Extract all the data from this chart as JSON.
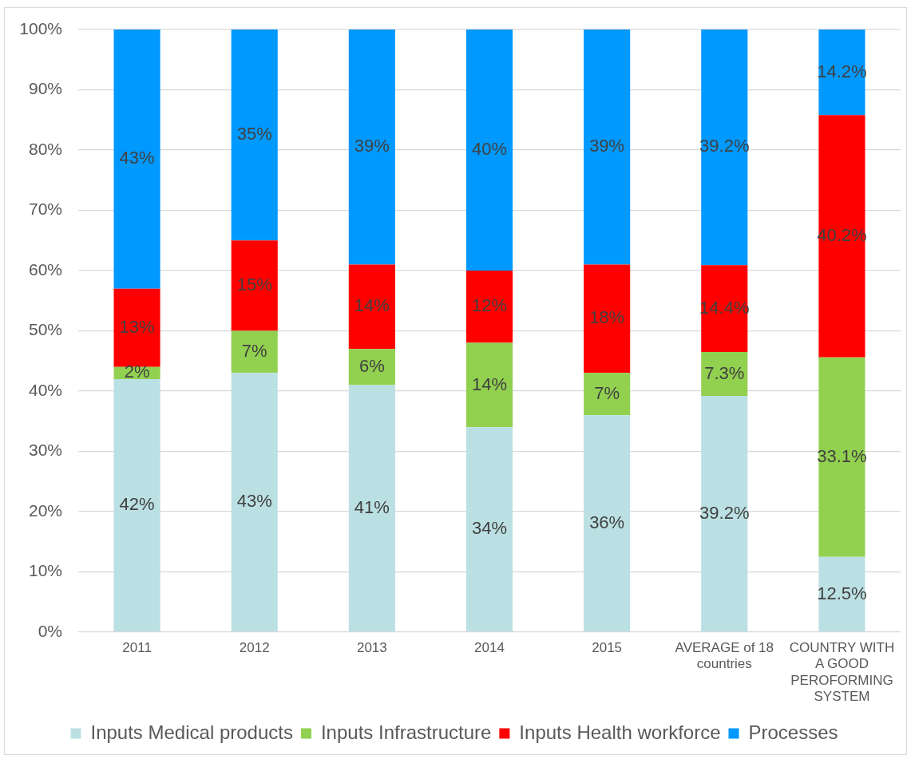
{
  "chart_data": {
    "type": "bar",
    "stacked": true,
    "categories": [
      "2011",
      "2012",
      "2013",
      "2014",
      "2015",
      "AVERAGE of 18 countries",
      "COUNTRY WITH A GOOD PEROFORMING SYSTEM"
    ],
    "series": [
      {
        "name": "Inputs Medical products",
        "color": "#bbe0e3",
        "values": [
          42,
          43,
          41,
          34,
          36,
          39.2,
          12.5
        ],
        "value_labels": [
          "42%",
          "43%",
          "41%",
          "34%",
          "36%",
          "39.2%",
          "12.5%"
        ]
      },
      {
        "name": "Inputs Infrastructure",
        "color": "#92d050",
        "values": [
          2,
          7,
          6,
          14,
          7,
          7.3,
          33.1
        ],
        "value_labels": [
          "2%",
          "7%",
          "6%",
          "14%",
          "7%",
          "7.3%",
          "33.1%"
        ]
      },
      {
        "name": "Inputs Health workforce",
        "color": "#ff0000",
        "values": [
          13,
          15,
          14,
          12,
          18,
          14.4,
          40.2
        ],
        "value_labels": [
          "13%",
          "15%",
          "14%",
          "12%",
          "18%",
          "14.4%",
          "40.2%"
        ]
      },
      {
        "name": "Processes",
        "color": "#0099ff",
        "values": [
          43,
          35,
          39,
          40,
          39,
          39.2,
          14.2
        ],
        "value_labels": [
          "43%",
          "35%",
          "39%",
          "40%",
          "39%",
          "39.2%",
          "14.2%"
        ]
      }
    ],
    "ylim": [
      0,
      100
    ],
    "yticks": [
      {
        "value": 0,
        "label": "0%"
      },
      {
        "value": 10,
        "label": "10%"
      },
      {
        "value": 20,
        "label": "20%"
      },
      {
        "value": 30,
        "label": "30%"
      },
      {
        "value": 40,
        "label": "40%"
      },
      {
        "value": 50,
        "label": "50%"
      },
      {
        "value": 60,
        "label": "60%"
      },
      {
        "value": 70,
        "label": "70%"
      },
      {
        "value": 80,
        "label": "80%"
      },
      {
        "value": 90,
        "label": "90%"
      },
      {
        "value": 100,
        "label": "100%"
      }
    ],
    "grid": "y",
    "legend": "bottom"
  }
}
